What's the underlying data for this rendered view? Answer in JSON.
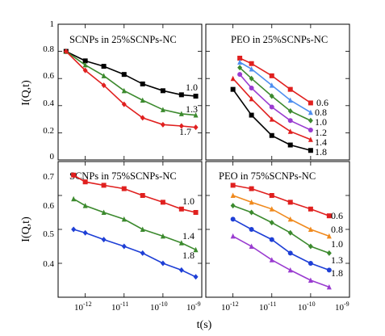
{
  "colors": {
    "black": "#000000",
    "red": "#e0201f",
    "green": "#3c8a2e",
    "blue": "#1e3fd6",
    "lightblue": "#4f8ff0",
    "purple": "#9a3cd0",
    "orange": "#f08a1e"
  },
  "axes": {
    "ylabel": "I(Q,t)",
    "xlabel": "t(s)",
    "yticks_top": [
      "0",
      "0.2",
      "0.4",
      "0.6",
      "0.8",
      "1"
    ],
    "yticks_bottom": [
      "0.4",
      "0.5",
      "0.6",
      "0.7"
    ],
    "xtick_base": "10",
    "xtick_exponents": [
      "-12",
      "-11",
      "-10",
      "-9"
    ]
  },
  "chart_data": [
    {
      "type": "scatter",
      "title": "SCNPs in 25%SCNPs-NC",
      "x_scale": "log",
      "xlim": [
        2e-13,
        1e-09
      ],
      "ylim": [
        0,
        1
      ],
      "marker": "mixed",
      "series": [
        {
          "name": "1.0",
          "color": "black",
          "x": [
            3.2e-13,
            1e-12,
            3e-12,
            1e-11,
            3e-11,
            1e-10,
            3e-10,
            7e-10
          ],
          "y": [
            0.8,
            0.73,
            0.69,
            0.63,
            0.56,
            0.51,
            0.48,
            0.47
          ]
        },
        {
          "name": "1.3",
          "color": "green",
          "x": [
            3.2e-13,
            1e-12,
            3e-12,
            1e-11,
            3e-11,
            1e-10,
            3e-10,
            7e-10
          ],
          "y": [
            0.8,
            0.7,
            0.62,
            0.51,
            0.44,
            0.37,
            0.34,
            0.33
          ]
        },
        {
          "name": "1.7",
          "color": "red",
          "x": [
            3.2e-13,
            1e-12,
            3e-12,
            1e-11,
            3e-11,
            1e-10,
            3e-10,
            7e-10
          ],
          "y": [
            0.8,
            0.66,
            0.55,
            0.41,
            0.31,
            0.26,
            0.25,
            0.24
          ]
        }
      ]
    },
    {
      "type": "scatter",
      "title": "PEO in 25%SCNPs-NC",
      "x_scale": "log",
      "xlim": [
        2e-13,
        1e-09
      ],
      "ylim": [
        0,
        1
      ],
      "series": [
        {
          "name": "0.6",
          "color": "red",
          "x": [
            1.5e-12,
            3e-12,
            1e-11,
            3e-11,
            1e-10
          ],
          "y": [
            0.75,
            0.71,
            0.62,
            0.52,
            0.42
          ]
        },
        {
          "name": "0.8",
          "color": "lightblue",
          "x": [
            1.5e-12,
            3e-12,
            1e-11,
            3e-11,
            1e-10
          ],
          "y": [
            0.72,
            0.67,
            0.55,
            0.44,
            0.35
          ]
        },
        {
          "name": "1.0",
          "color": "green",
          "x": [
            1.5e-12,
            3e-12,
            1e-11,
            3e-11,
            1e-10
          ],
          "y": [
            0.68,
            0.6,
            0.47,
            0.36,
            0.29
          ]
        },
        {
          "name": "1.2",
          "color": "purple",
          "x": [
            1.5e-12,
            3e-12,
            1e-11,
            3e-11,
            1e-10
          ],
          "y": [
            0.63,
            0.53,
            0.39,
            0.29,
            0.22
          ]
        },
        {
          "name": "1.4",
          "color": "red",
          "x": [
            1e-12,
            3e-12,
            1e-11,
            3e-11,
            1e-10
          ],
          "y": [
            0.6,
            0.45,
            0.3,
            0.21,
            0.15
          ]
        },
        {
          "name": "1.8",
          "color": "black",
          "x": [
            1e-12,
            3e-12,
            1e-11,
            3e-11,
            1e-10
          ],
          "y": [
            0.52,
            0.33,
            0.18,
            0.11,
            0.07
          ]
        }
      ]
    },
    {
      "type": "scatter",
      "title": "SCNPs in 75%SCNPs-NC",
      "x_scale": "log",
      "xlim": [
        2e-13,
        1e-09
      ],
      "ylim": [
        0.4,
        0.8
      ],
      "series": [
        {
          "name": "1.0",
          "color": "red",
          "x": [
            5e-13,
            1e-12,
            3e-12,
            1e-11,
            3e-11,
            1e-10,
            3e-10,
            7e-10
          ],
          "y": [
            0.76,
            0.74,
            0.73,
            0.72,
            0.7,
            0.68,
            0.66,
            0.65
          ]
        },
        {
          "name": "1.4",
          "color": "green",
          "x": [
            5e-13,
            1e-12,
            3e-12,
            1e-11,
            3e-11,
            1e-10,
            3e-10,
            7e-10
          ],
          "y": [
            0.69,
            0.67,
            0.65,
            0.63,
            0.6,
            0.58,
            0.56,
            0.54
          ]
        },
        {
          "name": "1.8",
          "color": "blue",
          "x": [
            5e-13,
            1e-12,
            3e-12,
            1e-11,
            3e-11,
            1e-10,
            3e-10,
            7e-10
          ],
          "y": [
            0.6,
            0.59,
            0.57,
            0.55,
            0.53,
            0.5,
            0.48,
            0.46
          ]
        }
      ]
    },
    {
      "type": "scatter",
      "title": "PEO in 75%SCNPs-NC",
      "x_scale": "log",
      "xlim": [
        2e-13,
        1e-09
      ],
      "ylim": [
        0.4,
        0.8
      ],
      "series": [
        {
          "name": "0.6",
          "color": "red",
          "x": [
            1e-12,
            3e-12,
            1e-11,
            3e-11,
            1e-10,
            3e-10
          ],
          "y": [
            0.73,
            0.72,
            0.7,
            0.68,
            0.66,
            0.64
          ]
        },
        {
          "name": "0.8",
          "color": "orange",
          "x": [
            1e-12,
            3e-12,
            1e-11,
            3e-11,
            1e-10,
            3e-10
          ],
          "y": [
            0.7,
            0.68,
            0.66,
            0.63,
            0.6,
            0.58
          ]
        },
        {
          "name": "1.0",
          "color": "green",
          "x": [
            1e-12,
            3e-12,
            1e-11,
            3e-11,
            1e-10,
            3e-10
          ],
          "y": [
            0.67,
            0.65,
            0.62,
            0.59,
            0.55,
            0.53
          ]
        },
        {
          "name": "1.3",
          "color": "blue",
          "x": [
            1e-12,
            3e-12,
            1e-11,
            3e-11,
            1e-10,
            3e-10
          ],
          "y": [
            0.63,
            0.6,
            0.57,
            0.53,
            0.5,
            0.48
          ]
        },
        {
          "name": "1.8",
          "color": "purple",
          "x": [
            1e-12,
            3e-12,
            1e-11,
            3e-11,
            1e-10,
            3e-10
          ],
          "y": [
            0.58,
            0.55,
            0.51,
            0.48,
            0.45,
            0.43
          ]
        }
      ]
    }
  ]
}
